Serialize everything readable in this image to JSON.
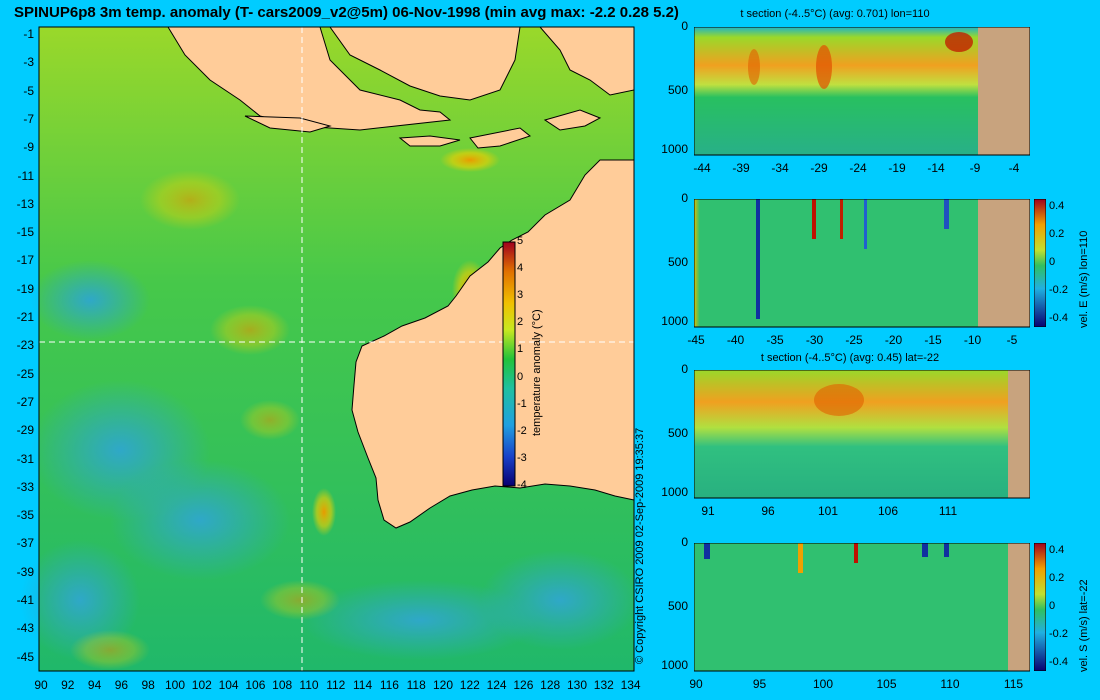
{
  "main_title": "SPINUP6p8 3m temp. anomaly (T- cars2009_v2@5m) 06-Nov-1998 (min avg max: -2.2 0.28 5.2)",
  "map": {
    "lat_ticks": [
      "-1",
      "-3",
      "-5",
      "-7",
      "-9",
      "-11",
      "-13",
      "-15",
      "-17",
      "-19",
      "-21",
      "-23",
      "-25",
      "-27",
      "-29",
      "-31",
      "-33",
      "-35",
      "-37",
      "-39",
      "-41",
      "-43",
      "-45"
    ],
    "lon_ticks": [
      "90",
      "92",
      "94",
      "96",
      "98",
      "100",
      "102",
      "104",
      "106",
      "108",
      "110",
      "112",
      "114",
      "116",
      "118",
      "120",
      "122",
      "124",
      "126",
      "128",
      "130",
      "132",
      "134"
    ],
    "section_lon": 110,
    "section_lat": -22,
    "colorbar": {
      "label": "temperature anomaly (°C)",
      "ticks": [
        "5",
        "4",
        "3",
        "2",
        "1",
        "0",
        "-1",
        "-2",
        "-3",
        "-4"
      ],
      "range": [
        -4,
        5
      ]
    },
    "colors": {
      "ocean_base": "#22c25a",
      "land": "#ffcc99",
      "warm": "#e8a400",
      "cool": "#31a9c8"
    }
  },
  "copyright": "© Copyright CSIRO 2009   02-Sep-2009 19:35:37",
  "panels": [
    {
      "title": "t section (-4..5°C) (avg: 0.701) lon=110",
      "x_ticks": [
        "-44",
        "-39",
        "-34",
        "-29",
        "-24",
        "-19",
        "-14",
        "-9",
        "-4"
      ],
      "y_ticks": [
        "0",
        "500",
        "1000"
      ]
    },
    {
      "title": "",
      "x_ticks": [
        "-45",
        "-40",
        "-35",
        "-30",
        "-25",
        "-20",
        "-15",
        "-10",
        "-5"
      ],
      "y_ticks": [
        "0",
        "500",
        "1000"
      ],
      "colorbar_label": "vel. E (m/s) lon=110",
      "colorbar_ticks": [
        "0.4",
        "0.2",
        "0",
        "-0.2",
        "-0.4"
      ]
    },
    {
      "title": "t section (-4..5°C) (avg: 0.45) lat=-22",
      "x_ticks": [
        "91",
        "96",
        "101",
        "106",
        "111"
      ],
      "y_ticks": [
        "0",
        "500",
        "1000"
      ]
    },
    {
      "title": "",
      "x_ticks": [
        "90",
        "95",
        "100",
        "105",
        "110",
        "115"
      ],
      "y_ticks": [
        "0",
        "500",
        "1000"
      ],
      "colorbar_label": "vel. S (m/s) lat=-22",
      "colorbar_ticks": [
        "0.4",
        "0.2",
        "0",
        "-0.2",
        "-0.4"
      ]
    }
  ]
}
